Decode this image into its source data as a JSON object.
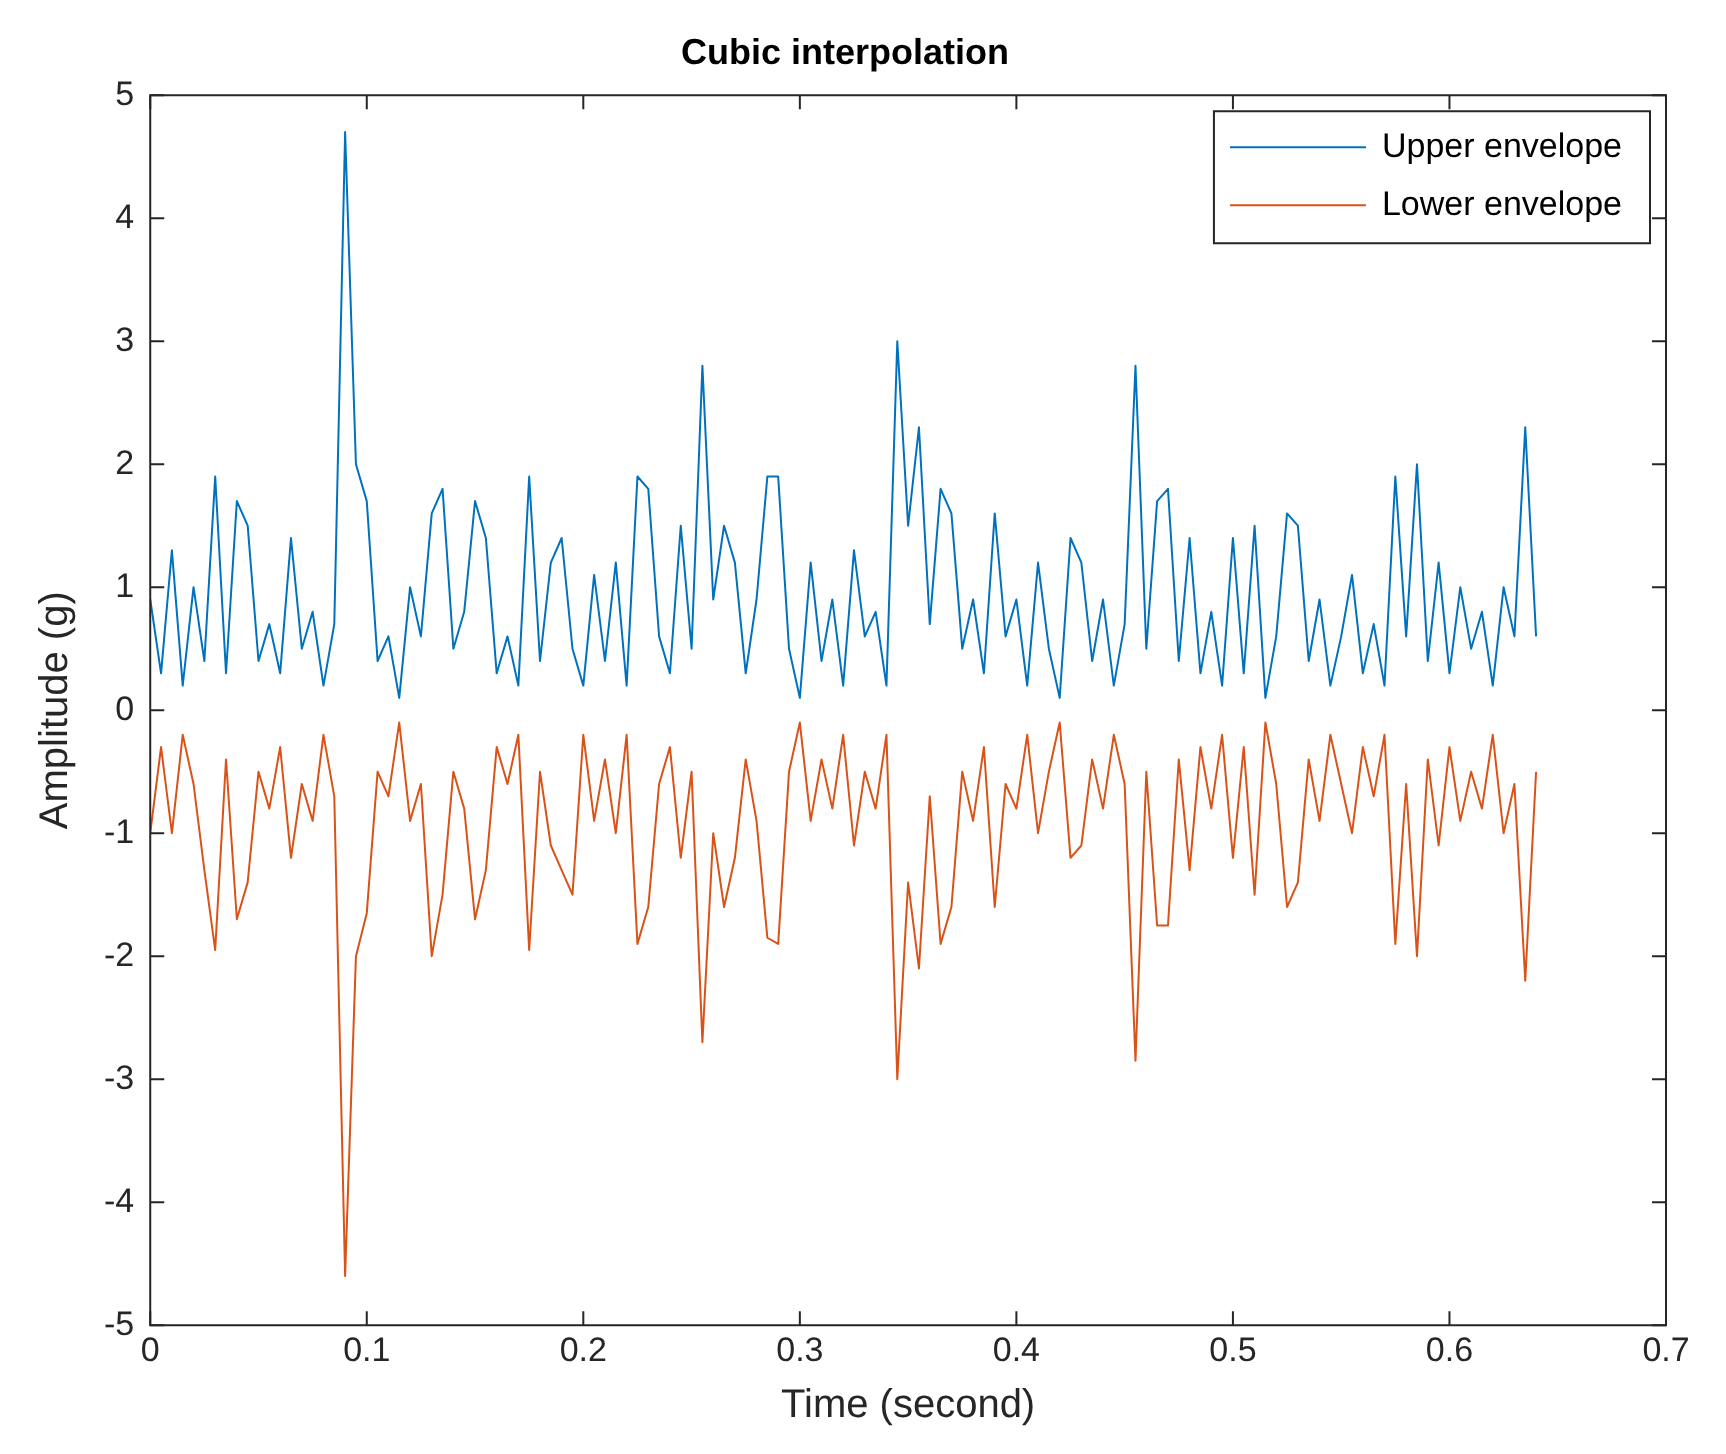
{
  "chart_data": {
    "type": "line",
    "title": "Cubic interpolation",
    "xlabel": "Time (second)",
    "ylabel": "Amplitude (g)",
    "x": [
      0,
      0.005,
      0.01,
      0.015,
      0.02,
      0.025,
      0.03,
      0.035,
      0.04,
      0.045,
      0.05,
      0.055,
      0.06,
      0.065,
      0.07,
      0.075,
      0.08,
      0.085,
      0.09,
      0.095,
      0.1,
      0.105,
      0.11,
      0.115,
      0.12,
      0.125,
      0.13,
      0.135,
      0.14,
      0.145,
      0.15,
      0.155,
      0.16,
      0.165,
      0.17,
      0.175,
      0.18,
      0.185,
      0.19,
      0.195,
      0.2,
      0.205,
      0.21,
      0.215,
      0.22,
      0.225,
      0.23,
      0.235,
      0.24,
      0.245,
      0.25,
      0.255,
      0.26,
      0.265,
      0.27,
      0.275,
      0.28,
      0.285,
      0.29,
      0.295,
      0.3,
      0.305,
      0.31,
      0.315,
      0.32,
      0.325,
      0.33,
      0.335,
      0.34,
      0.345,
      0.35,
      0.355,
      0.36,
      0.365,
      0.37,
      0.375,
      0.38,
      0.385,
      0.39,
      0.395,
      0.4,
      0.405,
      0.41,
      0.415,
      0.42,
      0.425,
      0.43,
      0.435,
      0.44,
      0.445,
      0.45,
      0.455,
      0.46,
      0.465,
      0.47,
      0.475,
      0.48,
      0.485,
      0.49,
      0.495,
      0.5,
      0.505,
      0.51,
      0.515,
      0.52,
      0.525,
      0.53,
      0.535,
      0.54,
      0.545,
      0.55,
      0.555,
      0.56,
      0.565,
      0.57,
      0.575,
      0.58,
      0.585,
      0.59,
      0.595,
      0.6,
      0.605,
      0.61,
      0.615,
      0.62,
      0.625,
      0.63,
      0.635,
      0.64
    ],
    "series": [
      {
        "name": "Upper envelope",
        "color": "#0072bd",
        "values": [
          0.9,
          0.3,
          1.3,
          0.2,
          1.0,
          0.4,
          1.9,
          0.3,
          1.7,
          1.5,
          0.4,
          0.7,
          0.3,
          1.4,
          0.5,
          0.8,
          0.2,
          0.7,
          4.7,
          2.0,
          1.7,
          0.4,
          0.6,
          0.1,
          1.0,
          0.6,
          1.6,
          1.8,
          0.5,
          0.8,
          1.7,
          1.4,
          0.3,
          0.6,
          0.2,
          1.9,
          0.4,
          1.2,
          1.4,
          0.5,
          0.2,
          1.1,
          0.4,
          1.2,
          0.2,
          1.9,
          1.8,
          0.6,
          0.3,
          1.5,
          0.5,
          2.8,
          0.9,
          1.5,
          1.2,
          0.3,
          0.9,
          1.9,
          1.9,
          0.5,
          0.1,
          1.2,
          0.4,
          0.9,
          0.2,
          1.3,
          0.6,
          0.8,
          0.2,
          3.0,
          1.5,
          2.3,
          0.7,
          1.8,
          1.6,
          0.5,
          0.9,
          0.3,
          1.6,
          0.6,
          0.9,
          0.2,
          1.2,
          0.5,
          0.1,
          1.4,
          1.2,
          0.4,
          0.9,
          0.2,
          0.7,
          2.8,
          0.5,
          1.7,
          1.8,
          0.4,
          1.4,
          0.3,
          0.8,
          0.2,
          1.4,
          0.3,
          1.5,
          0.1,
          0.6,
          1.6,
          1.5,
          0.4,
          0.9,
          0.2,
          0.6,
          1.1,
          0.3,
          0.7,
          0.2,
          1.9,
          0.6,
          2.0,
          0.4,
          1.2,
          0.3,
          1.0,
          0.5,
          0.8,
          0.2,
          1.0,
          0.6,
          2.3,
          0.6
        ]
      },
      {
        "name": "Lower envelope",
        "color": "#d95319",
        "values": [
          -1.0,
          -0.3,
          -1.0,
          -0.2,
          -0.6,
          -1.3,
          -1.95,
          -0.4,
          -1.7,
          -1.4,
          -0.5,
          -0.8,
          -0.3,
          -1.2,
          -0.6,
          -0.9,
          -0.2,
          -0.7,
          -4.6,
          -2.0,
          -1.65,
          -0.5,
          -0.7,
          -0.1,
          -0.9,
          -0.6,
          -2.0,
          -1.5,
          -0.5,
          -0.8,
          -1.7,
          -1.3,
          -0.3,
          -0.6,
          -0.2,
          -1.95,
          -0.5,
          -1.1,
          -1.3,
          -1.5,
          -0.2,
          -0.9,
          -0.4,
          -1.0,
          -0.2,
          -1.9,
          -1.6,
          -0.6,
          -0.3,
          -1.2,
          -0.5,
          -2.7,
          -1.0,
          -1.6,
          -1.2,
          -0.4,
          -0.9,
          -1.85,
          -1.9,
          -0.5,
          -0.1,
          -0.9,
          -0.4,
          -0.8,
          -0.2,
          -1.1,
          -0.5,
          -0.8,
          -0.2,
          -3.0,
          -1.4,
          -2.1,
          -0.7,
          -1.9,
          -1.6,
          -0.5,
          -0.9,
          -0.3,
          -1.6,
          -0.6,
          -0.8,
          -0.2,
          -1.0,
          -0.5,
          -0.1,
          -1.2,
          -1.1,
          -0.4,
          -0.8,
          -0.2,
          -0.6,
          -2.85,
          -0.5,
          -1.75,
          -1.75,
          -0.4,
          -1.3,
          -0.3,
          -0.8,
          -0.2,
          -1.2,
          -0.3,
          -1.5,
          -0.1,
          -0.6,
          -1.6,
          -1.4,
          -0.4,
          -0.9,
          -0.2,
          -0.6,
          -1.0,
          -0.3,
          -0.7,
          -0.2,
          -1.9,
          -0.6,
          -2.0,
          -0.4,
          -1.1,
          -0.3,
          -0.9,
          -0.5,
          -0.8,
          -0.2,
          -1.0,
          -0.6,
          -2.2,
          -0.5
        ]
      }
    ],
    "xlim": [
      0,
      0.7
    ],
    "xticks": [
      0,
      0.1,
      0.2,
      0.3,
      0.4,
      0.5,
      0.6,
      0.7
    ],
    "ylim": [
      -5,
      5
    ],
    "yticks": [
      -5,
      -4,
      -3,
      -2,
      -1,
      0,
      1,
      2,
      3,
      4,
      5
    ],
    "legend": "top right",
    "marker": "none",
    "line_style": "solid"
  }
}
